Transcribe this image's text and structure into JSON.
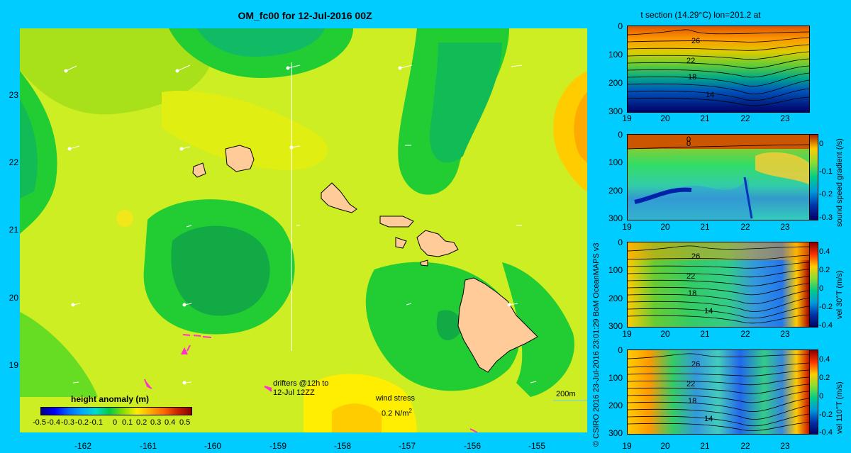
{
  "map": {
    "title": "OM_fc00 for 12-Jul-2016 00Z",
    "lat_ticks": [
      "23",
      "22",
      "21",
      "20",
      "19"
    ],
    "lon_ticks": [
      "-162",
      "-161",
      "-160",
      "-159",
      "-158",
      "-157",
      "-156",
      "-155"
    ],
    "drifters_label_1": "drifters @12h to",
    "drifters_label_2": "12-Jul 12ZZ",
    "wind_label": "wind stress",
    "wind_scale": "0.2 N/m",
    "wind_scale_sup": "2",
    "depth_label": "200m",
    "colorbar_title": "height anomaly  (m)",
    "colorbar_ticks": [
      "-0.5",
      "-0.4",
      "-0.3",
      "-0.2",
      "-0.1",
      "0",
      "0.1",
      "0.2",
      "0.3",
      "0.4",
      "0.5"
    ]
  },
  "credit": "© CSIRO 2016   23-Jul-2016 23:01:29 BoM OceanMAPS v3",
  "sections": {
    "title": "t section (14.29°C) lon=201.2 at",
    "depth_ticks": [
      "0",
      "100",
      "200",
      "300"
    ],
    "lat_ticks": [
      "19",
      "20",
      "21",
      "22",
      "23"
    ],
    "temp_labels": [
      "26",
      "22",
      "18",
      "14"
    ],
    "panel2_zero_labels": [
      "0",
      "0"
    ],
    "panel2_cb_label": "sound speed gradient  (/s)",
    "panel2_cb_ticks": [
      "0",
      "-0.1",
      "-0.2",
      "-0.3"
    ],
    "panel3_cb_label": "vel 30°T  (m/s)",
    "panel4_cb_label": "vel 110°T  (m/s)",
    "vel_cb_ticks": [
      "0.4",
      "0.2",
      "0",
      "-0.2",
      "-0.4"
    ]
  },
  "colors": {
    "background": "#00ccff",
    "land": "#ffcc99",
    "drifter": "#ff33cc"
  }
}
